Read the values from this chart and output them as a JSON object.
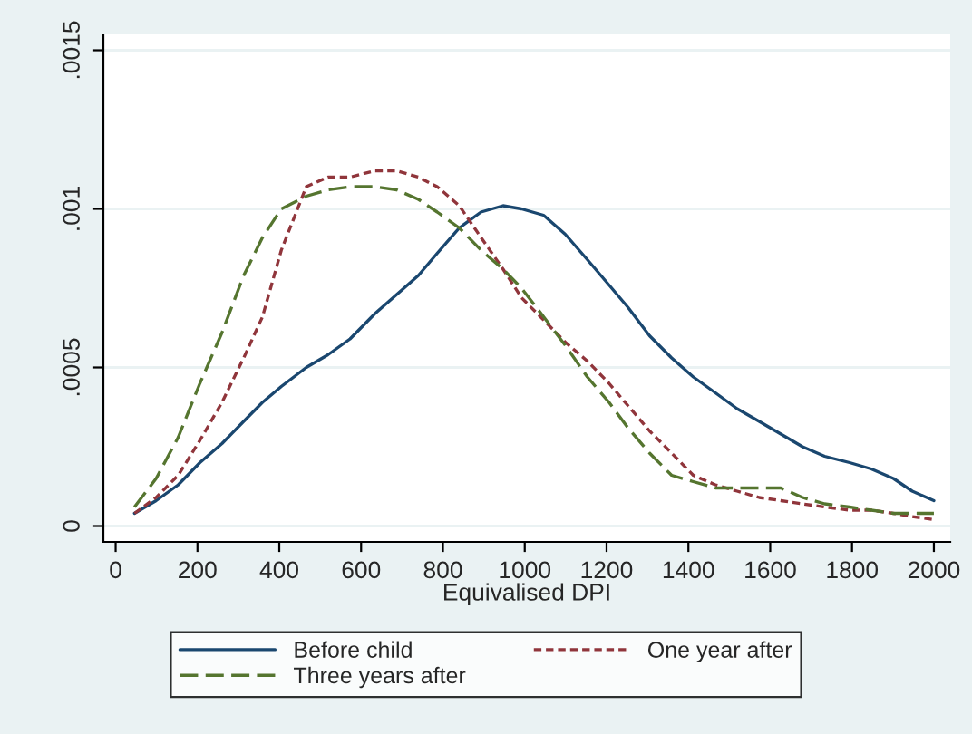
{
  "chart_data": {
    "type": "line",
    "xlabel": "Equivalised DPI",
    "x": [
      46,
      99,
      153,
      206,
      260,
      313,
      359,
      405,
      466,
      519,
      573,
      634,
      687,
      740,
      786,
      840,
      893,
      947,
      992,
      1046,
      1099,
      1153,
      1206,
      1252,
      1305,
      1359,
      1412,
      1466,
      1519,
      1573,
      1626,
      1679,
      1733,
      1794,
      1847,
      1901,
      1947,
      2000
    ],
    "series": [
      {
        "name": "Before child",
        "color": "#1a476f",
        "line_style": "solid",
        "values": [
          4e-05,
          8e-05,
          0.00013,
          0.0002,
          0.00026,
          0.00033,
          0.00039,
          0.00044,
          0.0005,
          0.00054,
          0.00059,
          0.00067,
          0.00073,
          0.00079,
          0.00086,
          0.00094,
          0.00099,
          0.00101,
          0.001,
          0.00098,
          0.00092,
          0.00084,
          0.00076,
          0.00069,
          0.0006,
          0.00053,
          0.00047,
          0.00042,
          0.00037,
          0.00033,
          0.00029,
          0.00025,
          0.00022,
          0.0002,
          0.00018,
          0.00015,
          0.00011,
          8e-05
        ]
      },
      {
        "name": "One year after",
        "color": "#90353b",
        "line_style": "dotted",
        "values": [
          4e-05,
          9e-05,
          0.00016,
          0.00027,
          0.00039,
          0.00053,
          0.00066,
          0.00087,
          0.00107,
          0.0011,
          0.0011,
          0.00112,
          0.00112,
          0.0011,
          0.00107,
          0.00101,
          0.00091,
          0.00081,
          0.00072,
          0.00065,
          0.00058,
          0.00052,
          0.00045,
          0.00038,
          0.0003,
          0.00023,
          0.00016,
          0.00013,
          0.00011,
          9e-05,
          8e-05,
          7e-05,
          6e-05,
          5e-05,
          5e-05,
          4e-05,
          3e-05,
          2e-05
        ]
      },
      {
        "name": "Three years after",
        "color": "#55752f",
        "line_style": "dashed",
        "values": [
          6e-05,
          0.00015,
          0.00028,
          0.00045,
          0.00061,
          0.00079,
          0.00091,
          0.001,
          0.00104,
          0.00106,
          0.00107,
          0.00107,
          0.00106,
          0.00103,
          0.00099,
          0.00094,
          0.00087,
          0.00081,
          0.00075,
          0.00066,
          0.00057,
          0.00047,
          0.00039,
          0.00031,
          0.00023,
          0.00016,
          0.00014,
          0.00012,
          0.00012,
          0.00012,
          0.00012,
          9e-05,
          7e-05,
          6e-05,
          5e-05,
          4e-05,
          4e-05,
          4e-05
        ]
      }
    ],
    "xlim": [
      -30,
      2040
    ],
    "xticks": [
      0,
      200,
      400,
      600,
      800,
      1000,
      1200,
      1400,
      1600,
      1800,
      2000
    ],
    "ylim": [
      -5e-05,
      0.00155
    ],
    "yticks": [
      {
        "value": 0,
        "label": "0"
      },
      {
        "value": 0.0005,
        "label": ".0005"
      },
      {
        "value": 0.001,
        "label": ".001"
      },
      {
        "value": 0.0015,
        "label": ".0015"
      }
    ],
    "grid": "y",
    "legend": "bottom"
  }
}
